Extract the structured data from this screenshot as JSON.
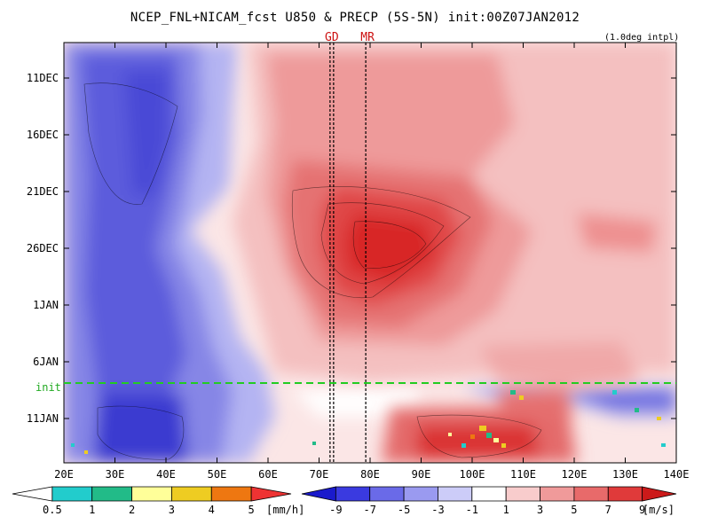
{
  "chart_data": {
    "type": "heatmap",
    "title": "NCEP_FNL+NICAM_fcst U850 & PRECP (5S-5N) init:00Z07JAN2012",
    "subtitle": "(1.0deg intpl)",
    "x_ticks": [
      "20E",
      "30E",
      "40E",
      "50E",
      "60E",
      "70E",
      "80E",
      "90E",
      "100E",
      "110E",
      "120E",
      "130E",
      "140E"
    ],
    "x_range": [
      20,
      140
    ],
    "y_ticks": [
      "11DEC",
      "16DEC",
      "21DEC",
      "26DEC",
      "1JAN",
      "6JAN",
      "11JAN"
    ],
    "init_label": "init",
    "markers": [
      {
        "label": "GD",
        "lon": 72.5
      },
      {
        "label": "MR",
        "lon": 79.5
      }
    ],
    "precip_colorbar": {
      "labels": [
        "0.5",
        "1",
        "2",
        "3",
        "4",
        "5"
      ],
      "unit": "[mm/h]",
      "colors": [
        "#ffffff",
        "#22cccc",
        "#22bb88",
        "#ffff99",
        "#eecc22",
        "#ee7711",
        "#ee3333"
      ]
    },
    "wind_colorbar": {
      "labels": [
        "-9",
        "-7",
        "-5",
        "-3",
        "-1",
        "1",
        "3",
        "5",
        "7",
        "9"
      ],
      "unit": "[m/s]",
      "colors": [
        "#1a1acc",
        "#3a3ae0",
        "#6a6ae8",
        "#9a9af0",
        "#ccccf8",
        "#ffffff",
        "#f8cccc",
        "#f09a9a",
        "#e86a6a",
        "#e03a3a",
        "#cc1a1a"
      ]
    }
  }
}
